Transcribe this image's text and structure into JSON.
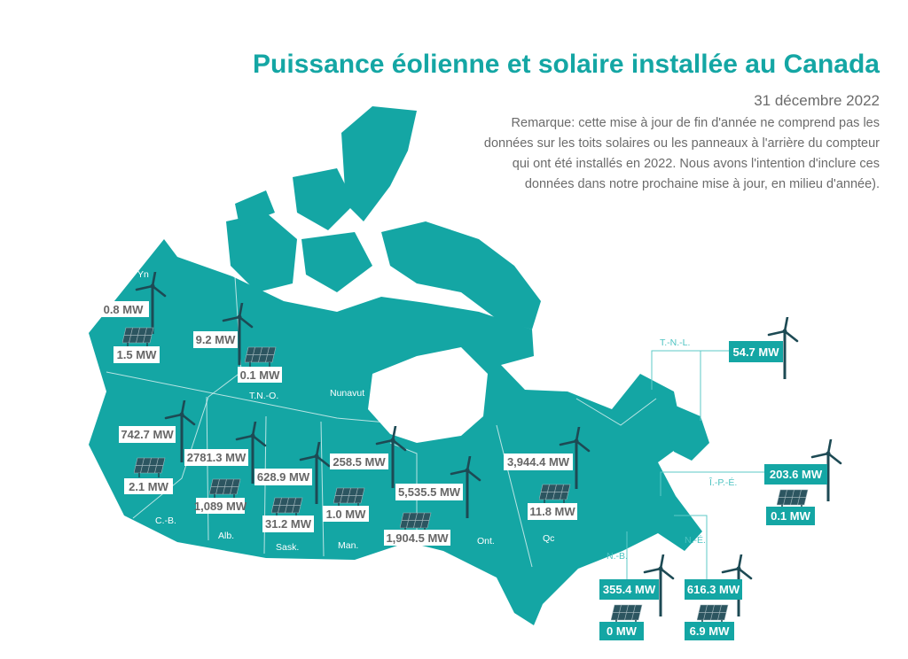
{
  "title": "Puissance éolienne et solaire installée au Canada",
  "date": "31 décembre 2022",
  "remark": "Remarque: cette mise à jour de fin d'année ne comprend pas les données sur les toits solaires ou les panneaux à l'arrière du compteur qui ont été installés en 2022. Nous avons l'intention d'inclure ces données dans notre prochaine mise à jour, en milieu d'année).",
  "colors": {
    "map": "#14a6a4",
    "turbine": "#1d4a54",
    "panel": "#2c5560",
    "text": "#6b6b6b"
  },
  "regions": [
    {
      "name": "Yn",
      "wind": "0.8 MW",
      "solar": "1.5 MW"
    },
    {
      "name": "T.N.-O.",
      "wind": "9.2 MW",
      "solar": "0.1 MW"
    },
    {
      "name": "Nunavut"
    },
    {
      "name": "C.-B.",
      "wind": "742.7 MW",
      "solar": "2.1 MW"
    },
    {
      "name": "Alb.",
      "wind": "2781.3 MW",
      "solar": "1,089 MW"
    },
    {
      "name": "Sask.",
      "wind": "628.9 MW",
      "solar": "31.2 MW"
    },
    {
      "name": "Man.",
      "wind": "258.5 MW",
      "solar": "1.0 MW"
    },
    {
      "name": "Ont.",
      "wind": "5,535.5 MW",
      "solar": "1,904.5 MW"
    },
    {
      "name": "Qc",
      "wind": "3,944.4 MW",
      "solar": "11.8 MW"
    },
    {
      "name": "T.-N.-L.",
      "wind": "54.7 MW"
    },
    {
      "name": "Î.-P.-É.",
      "wind": "203.6 MW",
      "solar": "0.1 MW"
    },
    {
      "name": "N.-B.",
      "wind": "355.4 MW",
      "solar": "0 MW"
    },
    {
      "name": "N.-É.",
      "wind": "616.3 MW",
      "solar": "6.9 MW"
    }
  ]
}
